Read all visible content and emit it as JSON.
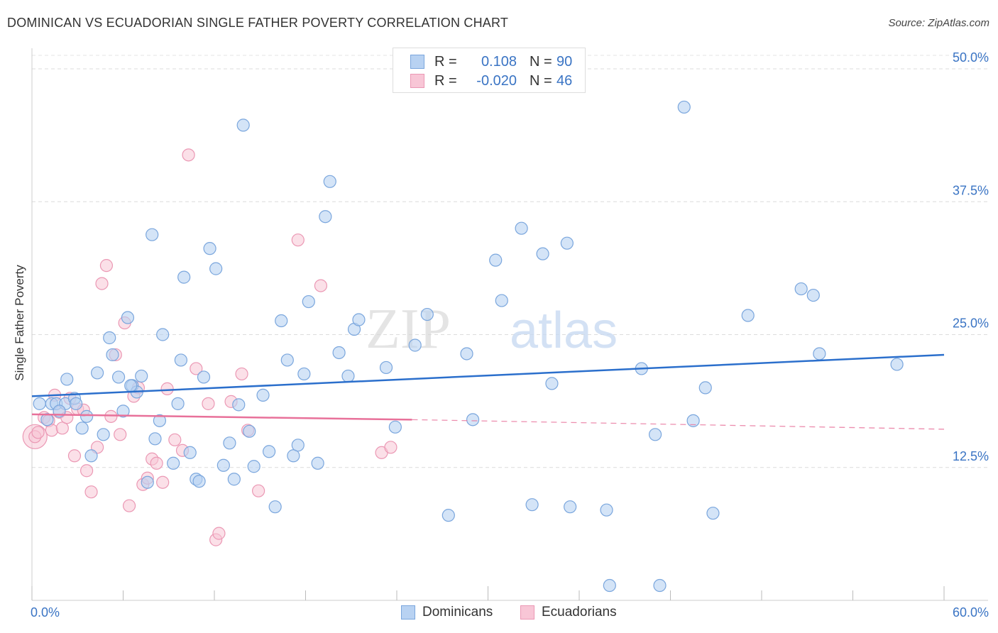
{
  "header": {
    "title": "DOMINICAN VS ECUADORIAN SINGLE FATHER POVERTY CORRELATION CHART",
    "source": "Source: ZipAtlas.com"
  },
  "legend": {
    "rows": [
      {
        "r_label": "R =",
        "r_value": "0.108",
        "n_label": "N =",
        "n_value": "90"
      },
      {
        "r_label": "R =",
        "r_value": "-0.020",
        "n_label": "N =",
        "n_value": "46"
      }
    ]
  },
  "bottom_legend": [
    "Dominicans",
    "Ecuadorians"
  ],
  "watermark": {
    "zip": "ZIP",
    "atlas": "atlas"
  },
  "colors": {
    "dominicans_fill": "#b8d2f2",
    "dominicans_stroke": "#7aa6dd",
    "dominicans_line": "#2b6fcc",
    "ecuadorians_fill": "#f8c6d6",
    "ecuadorians_stroke": "#eb98b4",
    "ecuadorians_line": "#e8719a",
    "axis_text": "#3a74c4"
  },
  "chart_data": {
    "type": "scatter",
    "title": "DOMINICAN VS ECUADORIAN SINGLE FATHER POVERTY CORRELATION CHART",
    "xlabel": "",
    "ylabel": "Single Father Poverty",
    "xlim": [
      0,
      60
    ],
    "ylim": [
      0,
      50
    ],
    "x_tick_labels": [
      "0.0%",
      "60.0%"
    ],
    "y_ticks": [
      12.5,
      25.0,
      37.5,
      50.0
    ],
    "y_tick_labels": [
      "12.5%",
      "25.0%",
      "37.5%",
      "50.0%"
    ],
    "grid": true,
    "legend_position": "top-center",
    "series": [
      {
        "name": "Dominicans",
        "r": 0.108,
        "n": 90,
        "trend": {
          "x": [
            0,
            60
          ],
          "y": [
            19.2,
            23.1
          ]
        },
        "points": [
          [
            0.5,
            18.5
          ],
          [
            1.0,
            17.0
          ],
          [
            1.3,
            18.5
          ],
          [
            1.6,
            18.5
          ],
          [
            2.2,
            18.5
          ],
          [
            2.3,
            20.8
          ],
          [
            2.8,
            19.0
          ],
          [
            2.9,
            18.5
          ],
          [
            3.3,
            16.2
          ],
          [
            3.6,
            17.3
          ],
          [
            3.9,
            13.6
          ],
          [
            4.3,
            21.4
          ],
          [
            4.7,
            15.6
          ],
          [
            5.1,
            24.7
          ],
          [
            5.3,
            23.1
          ],
          [
            5.7,
            21.0
          ],
          [
            6.0,
            17.8
          ],
          [
            6.3,
            26.6
          ],
          [
            6.6,
            20.2
          ],
          [
            6.9,
            19.6
          ],
          [
            7.2,
            21.1
          ],
          [
            7.6,
            11.1
          ],
          [
            7.9,
            34.4
          ],
          [
            8.1,
            15.2
          ],
          [
            8.4,
            16.9
          ],
          [
            8.6,
            25.0
          ],
          [
            9.3,
            12.9
          ],
          [
            9.6,
            18.5
          ],
          [
            9.8,
            22.6
          ],
          [
            10.0,
            30.4
          ],
          [
            10.4,
            13.9
          ],
          [
            10.8,
            11.4
          ],
          [
            11.0,
            11.2
          ],
          [
            11.7,
            33.1
          ],
          [
            12.1,
            31.2
          ],
          [
            12.6,
            12.7
          ],
          [
            13.0,
            14.8
          ],
          [
            13.3,
            11.4
          ],
          [
            13.6,
            18.4
          ],
          [
            13.9,
            44.7
          ],
          [
            14.3,
            15.9
          ],
          [
            14.6,
            12.6
          ],
          [
            15.2,
            19.3
          ],
          [
            15.6,
            14.0
          ],
          [
            16.0,
            8.8
          ],
          [
            16.4,
            26.3
          ],
          [
            16.8,
            22.6
          ],
          [
            17.2,
            13.6
          ],
          [
            17.5,
            14.6
          ],
          [
            17.9,
            21.3
          ],
          [
            18.8,
            12.9
          ],
          [
            19.3,
            36.1
          ],
          [
            19.6,
            39.4
          ],
          [
            20.2,
            23.3
          ],
          [
            20.8,
            21.1
          ],
          [
            21.2,
            25.5
          ],
          [
            21.5,
            26.4
          ],
          [
            23.3,
            21.9
          ],
          [
            23.9,
            16.3
          ],
          [
            25.2,
            24.0
          ],
          [
            26.0,
            26.9
          ],
          [
            27.4,
            8.0
          ],
          [
            28.6,
            23.2
          ],
          [
            29.0,
            17.0
          ],
          [
            30.5,
            32.0
          ],
          [
            30.9,
            28.2
          ],
          [
            32.2,
            35.0
          ],
          [
            32.9,
            9.0
          ],
          [
            33.6,
            32.6
          ],
          [
            34.2,
            20.4
          ],
          [
            35.2,
            33.6
          ],
          [
            35.4,
            8.8
          ],
          [
            37.8,
            8.5
          ],
          [
            38.0,
            1.4
          ],
          [
            40.1,
            21.8
          ],
          [
            41.0,
            15.6
          ],
          [
            41.3,
            1.4
          ],
          [
            42.9,
            46.4
          ],
          [
            43.5,
            16.9
          ],
          [
            44.3,
            20.0
          ],
          [
            44.8,
            8.2
          ],
          [
            47.1,
            26.8
          ],
          [
            50.6,
            29.3
          ],
          [
            51.4,
            28.7
          ],
          [
            51.8,
            23.2
          ],
          [
            56.9,
            22.2
          ],
          [
            1.8,
            17.8
          ],
          [
            11.3,
            21.0
          ],
          [
            18.2,
            28.1
          ],
          [
            6.5,
            20.2
          ]
        ]
      },
      {
        "name": "Ecuadorians",
        "r": -0.02,
        "n": 46,
        "trend": {
          "x": [
            0,
            25
          ],
          "y": [
            17.5,
            17.0
          ]
        },
        "trend_dashed": {
          "x": [
            25,
            60
          ],
          "y": [
            17.0,
            16.1
          ]
        },
        "points": [
          [
            0.2,
            15.4
          ],
          [
            0.4,
            15.8
          ],
          [
            0.8,
            17.2
          ],
          [
            1.1,
            16.9
          ],
          [
            1.3,
            16.0
          ],
          [
            1.5,
            19.3
          ],
          [
            1.8,
            17.7
          ],
          [
            2.0,
            16.2
          ],
          [
            2.3,
            17.2
          ],
          [
            2.5,
            19.0
          ],
          [
            2.8,
            13.6
          ],
          [
            3.0,
            18.0
          ],
          [
            3.4,
            17.9
          ],
          [
            3.6,
            12.2
          ],
          [
            3.9,
            10.2
          ],
          [
            4.3,
            14.4
          ],
          [
            4.6,
            29.8
          ],
          [
            4.9,
            31.5
          ],
          [
            5.2,
            17.3
          ],
          [
            5.5,
            23.1
          ],
          [
            5.8,
            15.6
          ],
          [
            6.1,
            26.1
          ],
          [
            6.4,
            8.9
          ],
          [
            6.7,
            19.2
          ],
          [
            7.0,
            20.0
          ],
          [
            7.3,
            10.9
          ],
          [
            7.6,
            11.5
          ],
          [
            7.9,
            13.3
          ],
          [
            8.2,
            12.9
          ],
          [
            8.6,
            11.1
          ],
          [
            8.9,
            19.9
          ],
          [
            9.4,
            15.1
          ],
          [
            9.9,
            14.1
          ],
          [
            10.3,
            41.9
          ],
          [
            10.8,
            21.8
          ],
          [
            11.6,
            18.5
          ],
          [
            12.1,
            5.7
          ],
          [
            12.3,
            6.3
          ],
          [
            13.1,
            18.7
          ],
          [
            13.8,
            21.3
          ],
          [
            14.2,
            16.0
          ],
          [
            14.9,
            10.3
          ],
          [
            17.5,
            33.9
          ],
          [
            19.0,
            29.6
          ],
          [
            23.0,
            13.9
          ],
          [
            23.6,
            14.4
          ]
        ]
      }
    ]
  }
}
